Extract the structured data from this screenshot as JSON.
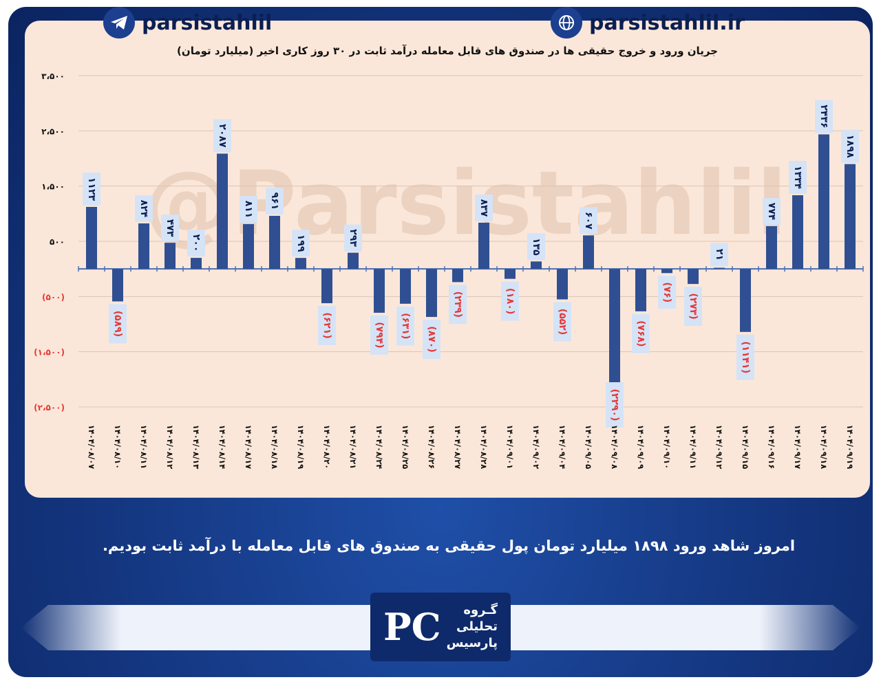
{
  "brand": {
    "watermark": "@Parsistahlil",
    "telegram_handle": "parsistahlil",
    "website": "parsistahlil.ir",
    "logo_lines": [
      "گـروه",
      "تحلیلی",
      "پارسیس"
    ],
    "logo_mark": "PC"
  },
  "caption": "امروز شاهد ورود ۱۸۹۸ میلیارد تومان پول حقیقی به صندوق های قابل معامله با درآمد ثابت بودیم.",
  "colors": {
    "bar": "#2f4f92",
    "negative_label": "#e53935",
    "label_box": "#d5e3f7",
    "axis": "#4a6fb5"
  },
  "chart_data": {
    "type": "bar",
    "title": "جریان ورود و خروج حقیقی ها در صندوق های قابل معامله درآمد ثابت در ۳۰ روز کاری اخیر (میلیارد تومان)",
    "ylim": [
      -2500,
      3500
    ],
    "yticks": [
      3500,
      2500,
      1500,
      500,
      -500,
      -1500,
      -2500
    ],
    "ytick_labels": [
      "۳،۵۰۰",
      "۲،۵۰۰",
      "۱،۵۰۰",
      "۵۰۰",
      "(۵۰۰)",
      "(۱،۵۰۰)",
      "(۲،۵۰۰)"
    ],
    "grid": true,
    "categories": [
      "۱۴۰۴/۰۸/۰۷",
      "۱۴۰۴/۰۸/۱۰",
      "۱۴۰۴/۰۸/۱۱",
      "۱۴۰۴/۰۸/۱۲",
      "۱۴۰۴/۰۸/۱۳",
      "۱۴۰۴/۰۸/۱۴",
      "۱۴۰۴/۰۸/۱۷",
      "۱۴۰۴/۰۸/۱۸",
      "۱۴۰۴/۰۸/۱۹",
      "۱۴۰۴/۰۸/۲۰",
      "۱۴۰۴/۰۸/۲۱",
      "۱۴۰۴/۰۸/۲۴",
      "۱۴۰۴/۰۸/۲۵",
      "۱۴۰۴/۰۸/۲۶",
      "۱۴۰۴/۰۸/۲۷",
      "۱۴۰۴/۰۸/۲۸",
      "۱۴۰۴/۰۹/۰۱",
      "۱۴۰۴/۰۹/۰۲",
      "۱۴۰۴/۰۹/۰۴",
      "۱۴۰۴/۰۹/۰۵",
      "۱۴۰۴/۰۹/۰۸",
      "۱۴۰۴/۰۹/۰۹",
      "۱۴۰۴/۰۹/۱۰",
      "۱۴۰۴/۰۹/۱۱",
      "۱۴۰۴/۰۹/۱۲",
      "۱۴۰۴/۰۹/۱۵",
      "۱۴۰۴/۰۹/۱۶",
      "۱۴۰۴/۰۹/۱۷",
      "۱۴۰۴/۰۹/۱۸",
      "۱۴۰۴/۰۹/۱۹"
    ],
    "values": [
      1123,
      -589,
      824,
      473,
      200,
      2087,
      811,
      961,
      199,
      -621,
      293,
      -794,
      -631,
      -870,
      -239,
      837,
      -180,
      135,
      -552,
      607,
      -2290,
      -768,
      -76,
      -273,
      21,
      -1141,
      774,
      1334,
      2436,
      1898
    ],
    "data_labels": [
      "۱۱۲۳",
      "(۵۸۹)",
      "۸۲۴",
      "۴۷۳",
      "۲۰۰",
      "۲۰۸۷",
      "۸۱۱",
      "۹۶۱",
      "۱۹۹",
      "(۶۲۱)",
      "۲۹۳",
      "(۷۹۴)",
      "(۶۳۱)",
      "(۸۷۰)",
      "(۲۳۹)",
      "۸۳۷",
      "(۱۸۰)",
      "۱۳۵",
      "(۵۵۲)",
      "۶۰۷",
      "(۲۲۹۰)",
      "(۷۶۸)",
      "(۷۶)",
      "(۲۷۳)",
      "۲۱",
      "(۱۱۴۱)",
      "۷۷۴",
      "۱۳۳۴",
      "۲۴۳۶",
      "۱۸۹۸"
    ]
  }
}
